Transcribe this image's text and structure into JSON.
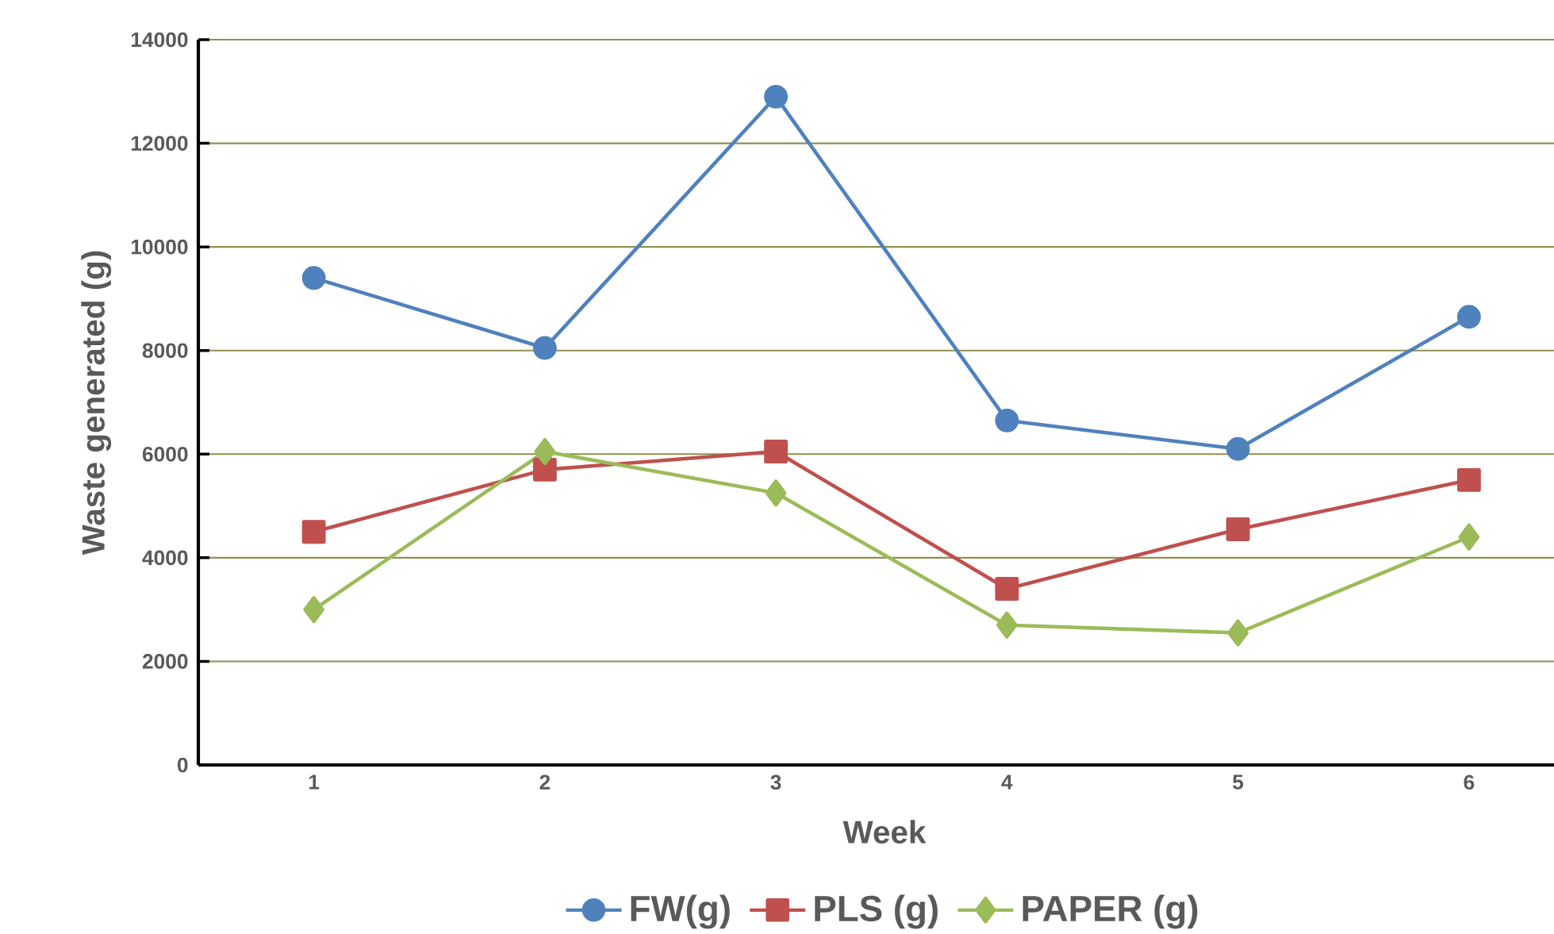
{
  "chart_data": {
    "type": "line",
    "xlabel": "Week",
    "ylabel": "Waste generated (g)",
    "categories": [
      "1",
      "2",
      "3",
      "4",
      "5",
      "6"
    ],
    "series": [
      {
        "name": "FW(g)",
        "color": "#4f81bd",
        "marker": "circle",
        "values": [
          9400,
          8050,
          12900,
          6650,
          6100,
          8650
        ]
      },
      {
        "name": "PLS (g)",
        "color": "#c0504d",
        "marker": "square",
        "values": [
          4500,
          5700,
          6050,
          3400,
          4550,
          5500
        ]
      },
      {
        "name": "PAPER (g)",
        "color": "#9bbb59",
        "marker": "diamond",
        "values": [
          3000,
          6050,
          5250,
          2700,
          2550,
          4400
        ]
      }
    ],
    "ylim": [
      0,
      14000
    ],
    "yticks": [
      0,
      2000,
      4000,
      6000,
      8000,
      10000,
      12000,
      14000
    ],
    "grid": "y",
    "legend": "bottom",
    "line_style": "solid"
  }
}
